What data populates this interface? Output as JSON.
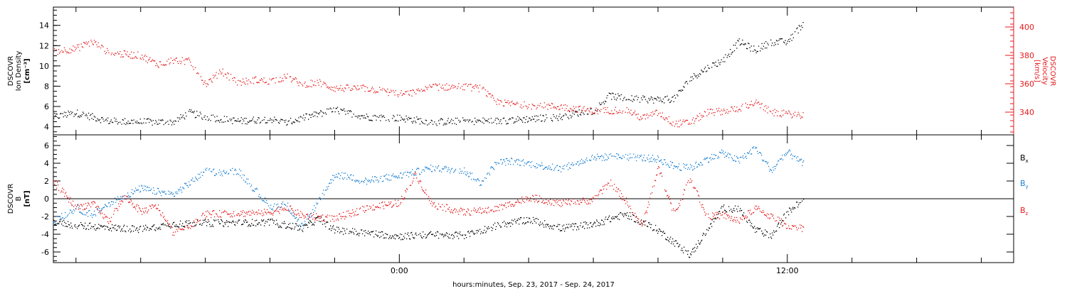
{
  "colors": {
    "density": "#000000",
    "velocity": "#e41a1c",
    "bx": "#000000",
    "by": "#1a7fd1",
    "bz": "#e41a1c",
    "frame": "#000000"
  },
  "xaxis": {
    "title": "hours:minutes, Sep. 23, 2017 - Sep. 24, 2017",
    "range_hours": [
      -10.7,
      19.0
    ],
    "major_ticks": [
      {
        "hour": 0,
        "label": "0:00"
      },
      {
        "hour": 12,
        "label": "12:00"
      }
    ],
    "minor_tick_step_hours": 2
  },
  "chart_data": [
    {
      "type": "scatter",
      "panel": "plasma",
      "ylabel_left": [
        "DSCOVR",
        "Ion Density",
        "[cm⁻³]"
      ],
      "ylabel_right": [
        "DSCOVR",
        "Velocity",
        "[km/s]"
      ],
      "left_axis": {
        "range": [
          3.2,
          15.8
        ],
        "ticks": [
          "4",
          "6",
          "8",
          "10",
          "12",
          "14"
        ]
      },
      "right_axis": {
        "range": [
          324,
          414
        ],
        "ticks": [
          "340",
          "360",
          "380",
          "400"
        ]
      },
      "series": [
        {
          "axis": "left",
          "x": [
            -10.7,
            -10.0,
            -9.0,
            -8.0,
            -7.0,
            -6.5,
            -6.0,
            -5.0,
            -4.0,
            -3.5,
            -3.0,
            -2.0,
            -1.0,
            0.0,
            1.0,
            2.0,
            3.0,
            4.0,
            5.0,
            5.5,
            6.0,
            6.5,
            7.0,
            8.0,
            8.5,
            9.0,
            9.5,
            10.0,
            10.5,
            11.0,
            11.5,
            12.0,
            12.5
          ],
          "y": [
            5.0,
            5.4,
            4.6,
            4.5,
            4.5,
            5.4,
            5.0,
            4.6,
            4.8,
            4.4,
            4.9,
            5.7,
            5.0,
            4.9,
            4.5,
            4.6,
            4.6,
            4.8,
            5.0,
            5.4,
            5.6,
            7.1,
            6.8,
            6.7,
            6.8,
            8.8,
            9.8,
            10.6,
            12.4,
            11.6,
            12.4,
            12.4,
            14.3
          ]
        },
        {
          "axis": "right",
          "x": [
            -10.7,
            -10.0,
            -9.5,
            -9.0,
            -8.0,
            -7.5,
            -7.0,
            -6.5,
            -6.0,
            -5.5,
            -5.0,
            -4.5,
            -4.0,
            -3.5,
            -3.0,
            -2.5,
            -2.0,
            -1.0,
            0.0,
            0.5,
            1.0,
            2.0,
            2.5,
            3.0,
            4.0,
            5.0,
            6.0,
            7.0,
            7.5,
            8.0,
            8.5,
            9.0,
            9.5,
            10.0,
            10.5,
            11.0,
            11.5,
            12.0,
            12.5
          ],
          "y": [
            383,
            385,
            390,
            382,
            380,
            374,
            377,
            376,
            360,
            369,
            361,
            363,
            362,
            365,
            360,
            361,
            357,
            357,
            353,
            354,
            358,
            358,
            357,
            347,
            345,
            344,
            341,
            342,
            336,
            340,
            332,
            333,
            340,
            341,
            343,
            347,
            340,
            339,
            338
          ]
        }
      ]
    },
    {
      "type": "scatter",
      "panel": "magnetic-field",
      "ylabel_left": [
        "DSCOVR",
        "B",
        "[nT]"
      ],
      "left_axis": {
        "range": [
          -7.2,
          7.2
        ],
        "ticks": [
          "-6",
          "-4",
          "-2",
          "0",
          "2",
          "4",
          "6"
        ]
      },
      "zero_line": true,
      "legend": {
        "placement": "right",
        "entries": [
          "B",
          "B",
          "B"
        ],
        "subscripts": [
          "x",
          "y",
          "z"
        ]
      },
      "series": [
        {
          "key": "bx",
          "x": [
            -10.7,
            -10.0,
            -9.0,
            -8.0,
            -7.0,
            -6.0,
            -5.0,
            -4.0,
            -3.0,
            -2.5,
            -2.0,
            -1.0,
            0.0,
            1.0,
            2.0,
            3.0,
            4.0,
            5.0,
            6.0,
            7.0,
            7.5,
            8.0,
            9.0,
            9.5,
            10.0,
            10.5,
            11.0,
            11.5,
            12.0,
            12.5
          ],
          "y": [
            -2.5,
            -3.0,
            -3.2,
            -3.4,
            -2.8,
            -2.7,
            -2.7,
            -2.6,
            -3.3,
            -2.2,
            -3.5,
            -3.8,
            -4.2,
            -4.0,
            -4.1,
            -3.0,
            -2.3,
            -3.3,
            -2.8,
            -1.7,
            -2.6,
            -3.5,
            -6.3,
            -3.5,
            -1.0,
            -1.2,
            -3.5,
            -4.1,
            -1.5,
            0.0
          ]
        },
        {
          "key": "by",
          "x": [
            -10.7,
            -10.0,
            -9.5,
            -9.0,
            -8.0,
            -7.0,
            -6.0,
            -5.5,
            -5.0,
            -4.0,
            -3.5,
            -3.0,
            -2.0,
            -1.0,
            -0.5,
            0.0,
            1.0,
            2.0,
            2.5,
            3.0,
            3.5,
            4.0,
            5.0,
            6.0,
            7.0,
            8.0,
            8.5,
            9.0,
            9.5,
            10.0,
            10.5,
            11.0,
            11.5,
            12.0,
            12.5
          ],
          "y": [
            -2.5,
            -1.0,
            -1.8,
            -0.5,
            1.2,
            0.5,
            3.1,
            3.0,
            3.2,
            -0.9,
            -0.6,
            -3.2,
            2.8,
            2.0,
            2.4,
            2.6,
            3.5,
            3.2,
            1.8,
            4.1,
            4.3,
            4.0,
            3.4,
            4.7,
            4.8,
            4.5,
            3.7,
            3.5,
            4.5,
            5.2,
            4.3,
            5.8,
            3.2,
            5.3,
            3.9
          ]
        },
        {
          "key": "bz",
          "x": [
            -10.7,
            -10.0,
            -9.5,
            -9.0,
            -8.5,
            -8.0,
            -7.5,
            -7.0,
            -6.5,
            -6.0,
            -5.0,
            -4.0,
            -3.5,
            -3.0,
            -2.0,
            -1.0,
            0.0,
            0.5,
            1.0,
            2.0,
            3.0,
            4.0,
            5.0,
            6.0,
            6.5,
            7.0,
            7.5,
            8.0,
            8.5,
            9.0,
            9.5,
            10.0,
            10.5,
            11.0,
            11.5,
            12.0,
            12.5
          ],
          "y": [
            2.0,
            -1.0,
            -0.5,
            -2.5,
            0.3,
            -1.4,
            -0.8,
            -3.8,
            -3.0,
            -1.7,
            -1.6,
            -1.5,
            -0.9,
            -1.9,
            -2.2,
            -1.0,
            -0.4,
            2.8,
            -0.6,
            -1.5,
            -1.1,
            0.2,
            -0.5,
            -0.1,
            1.9,
            -0.2,
            -3.1,
            3.5,
            -1.7,
            2.4,
            -2.0,
            -1.8,
            -2.5,
            -1.0,
            -2.0,
            -3.0,
            -3.3
          ]
        }
      ]
    }
  ]
}
